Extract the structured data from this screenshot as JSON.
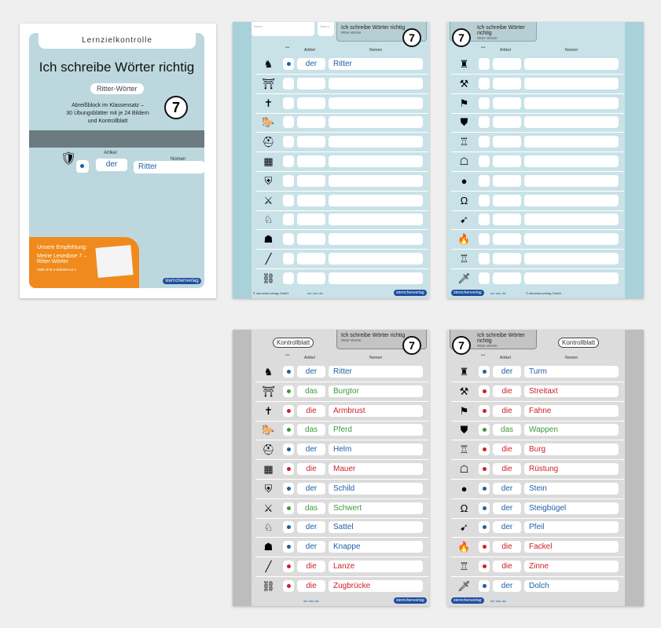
{
  "colors": {
    "der": "#1f5fa8",
    "das": "#3a9a3a",
    "die": "#d0202a",
    "orange": "#f08a1c",
    "brand": "#1d4d9e"
  },
  "cover": {
    "series": "Lernzielkontrolle",
    "title": "Ich schreibe Wörter richtig",
    "subtitle": "Ritter-Wörter",
    "number": "7",
    "description": [
      "Abreißblock im Klassensatz –",
      "30 Übungsblätter mit je 24 Bildern",
      "und Kontrollblatt"
    ],
    "col_artikel": "Artikel",
    "col_nomen": "Nomen",
    "example_article": "der",
    "example_noun": "Ritter",
    "recommendation": {
      "heading": "Unsere Empfehlung:",
      "title": [
        "Meine Lesedose 7 –",
        "Ritter-Wörter"
      ],
      "isbn": "ISBN 978-3-939293-52-1"
    },
    "logo": "sternchenverlag"
  },
  "sheet_header": {
    "title": "Ich schreibe Wörter richtig",
    "subtitle": "Ritter-Wörter",
    "number": "7",
    "name_label": "Name",
    "date_label": "Datum",
    "col_artikel": "Artikel",
    "col_nomen": "Nomen",
    "control": "Kontrollblatt",
    "copyright": "© sternchenverlag GmbH",
    "legend": "der das die",
    "logo": "sternchenverlag"
  },
  "worksheet_left": {
    "icons": [
      "knight",
      "gate",
      "crossbow",
      "horse",
      "helmet",
      "wall",
      "shield",
      "sword",
      "saddle",
      "squire",
      "lance",
      "drawbridge"
    ],
    "example": {
      "article": "der",
      "noun": "Ritter"
    }
  },
  "worksheet_right": {
    "icons": [
      "tower",
      "battle-axe",
      "flag",
      "coat-of-arms",
      "castle",
      "armor",
      "stone",
      "stirrup",
      "arrow",
      "torch",
      "battlement",
      "dagger"
    ]
  },
  "answers_left": [
    {
      "icon": "knight",
      "article": "der",
      "noun": "Ritter"
    },
    {
      "icon": "gate",
      "article": "das",
      "noun": "Burgtor"
    },
    {
      "icon": "crossbow",
      "article": "die",
      "noun": "Armbrust"
    },
    {
      "icon": "horse",
      "article": "das",
      "noun": "Pferd"
    },
    {
      "icon": "helmet",
      "article": "der",
      "noun": "Helm"
    },
    {
      "icon": "wall",
      "article": "die",
      "noun": "Mauer"
    },
    {
      "icon": "shield",
      "article": "der",
      "noun": "Schild"
    },
    {
      "icon": "sword",
      "article": "das",
      "noun": "Schwert"
    },
    {
      "icon": "saddle",
      "article": "der",
      "noun": "Sattel"
    },
    {
      "icon": "squire",
      "article": "der",
      "noun": "Knappe"
    },
    {
      "icon": "lance",
      "article": "die",
      "noun": "Lanze"
    },
    {
      "icon": "drawbridge",
      "article": "die",
      "noun": "Zugbrücke"
    }
  ],
  "answers_right": [
    {
      "icon": "tower",
      "article": "der",
      "noun": "Turm"
    },
    {
      "icon": "battle-axe",
      "article": "die",
      "noun": "Streitaxt"
    },
    {
      "icon": "flag",
      "article": "die",
      "noun": "Fahne"
    },
    {
      "icon": "coat-of-arms",
      "article": "das",
      "noun": "Wappen"
    },
    {
      "icon": "castle",
      "article": "die",
      "noun": "Burg"
    },
    {
      "icon": "armor",
      "article": "die",
      "noun": "Rüstung"
    },
    {
      "icon": "stone",
      "article": "der",
      "noun": "Stein"
    },
    {
      "icon": "stirrup",
      "article": "der",
      "noun": "Steigbügel"
    },
    {
      "icon": "arrow",
      "article": "der",
      "noun": "Pfeil"
    },
    {
      "icon": "torch",
      "article": "die",
      "noun": "Fackel"
    },
    {
      "icon": "battlement",
      "article": "die",
      "noun": "Zinne"
    },
    {
      "icon": "dagger",
      "article": "der",
      "noun": "Dolch"
    }
  ]
}
